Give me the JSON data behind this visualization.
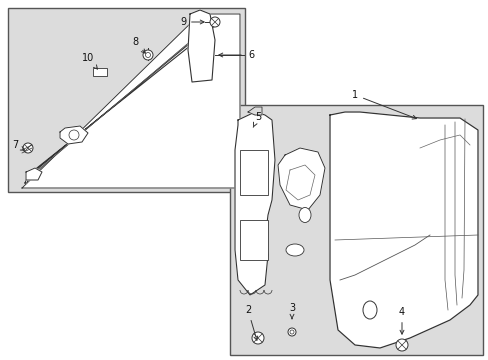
{
  "bg_color": "#ffffff",
  "box1_fill": "#dcdcdc",
  "box2_fill": "#dcdcdc",
  "line_color": "#333333",
  "label_color": "#111111",
  "label_fontsize": 7,
  "arrow_lw": 0.7
}
